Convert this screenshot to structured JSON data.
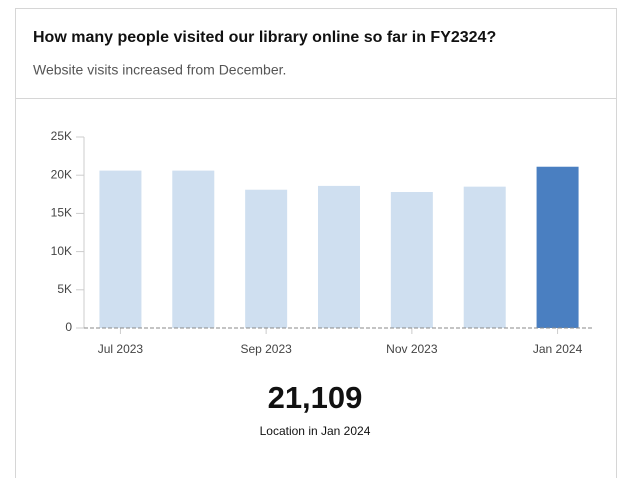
{
  "chart_data": {
    "type": "bar",
    "title": "How many people visited our library online so far in FY2324?",
    "subtitle": "Website visits increased from December.",
    "categories": [
      "Jul 2023",
      null,
      "Sep 2023",
      null,
      "Nov 2023",
      null,
      "Jan 2024"
    ],
    "values": [
      20600,
      20600,
      18100,
      18600,
      17800,
      18500,
      21109
    ],
    "colors": [
      "#cfdff0",
      "#cfdff0",
      "#cfdff0",
      "#cfdff0",
      "#cfdff0",
      "#cfdff0",
      "#4a7fc1"
    ],
    "ylim": [
      0,
      25000
    ],
    "yticks": [
      0,
      {
        "value": 5000,
        "label": "5K"
      },
      {
        "value": 10000,
        "label": "10K"
      },
      {
        "value": 15000,
        "label": "15K"
      },
      {
        "value": 20000,
        "label": "20K"
      },
      {
        "value": 25000,
        "label": "25K"
      }
    ],
    "callout": "21,109",
    "callout_caption": "Location in Jan 2024"
  }
}
